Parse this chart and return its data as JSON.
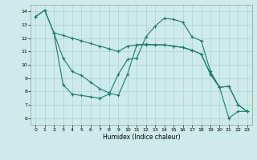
{
  "line1_x": [
    0,
    1,
    2,
    3,
    4,
    5,
    6,
    7,
    8,
    9,
    10,
    11,
    12,
    13,
    14,
    15,
    16,
    17,
    18,
    19,
    20,
    21,
    22,
    23
  ],
  "line1_y": [
    13.6,
    14.1,
    12.4,
    12.2,
    12.0,
    11.8,
    11.6,
    11.4,
    11.2,
    11.0,
    11.4,
    11.5,
    11.5,
    11.5,
    11.5,
    11.4,
    11.3,
    11.1,
    10.8,
    9.3,
    8.3,
    8.4,
    7.0,
    6.5
  ],
  "line2_x": [
    2,
    3,
    4,
    5,
    6,
    7,
    8,
    9,
    10,
    11,
    12,
    13,
    14,
    15,
    16,
    17,
    18,
    19,
    20,
    21,
    22,
    23
  ],
  "line2_y": [
    12.4,
    8.5,
    7.8,
    7.7,
    7.6,
    7.5,
    7.8,
    9.3,
    10.4,
    10.5,
    12.1,
    12.9,
    13.5,
    13.4,
    13.2,
    12.1,
    11.8,
    9.5,
    8.3,
    6.0,
    6.5,
    6.5
  ],
  "line3_x": [
    0,
    1,
    2,
    3,
    4,
    5,
    6,
    7,
    8,
    9,
    10,
    11,
    12,
    13,
    14,
    15,
    16,
    17,
    18,
    19,
    20,
    21,
    22,
    23
  ],
  "line3_y": [
    13.6,
    14.1,
    12.4,
    10.5,
    9.5,
    9.2,
    8.7,
    8.2,
    7.9,
    7.7,
    9.3,
    11.5,
    11.55,
    11.5,
    11.5,
    11.4,
    11.3,
    11.1,
    10.8,
    9.3,
    8.3,
    8.4,
    7.0,
    6.5
  ],
  "bg_color": "#ceeaea",
  "line_color": "#1a7a6e",
  "grid_color": "#aed4d0",
  "xlabel": "Humidex (Indice chaleur)",
  "ylim": [
    5.5,
    14.5
  ],
  "xlim": [
    -0.5,
    23.5
  ],
  "yticks": [
    6,
    7,
    8,
    9,
    10,
    11,
    12,
    13,
    14
  ],
  "xticks": [
    0,
    1,
    2,
    3,
    4,
    5,
    6,
    7,
    8,
    9,
    10,
    11,
    12,
    13,
    14,
    15,
    16,
    17,
    18,
    19,
    20,
    21,
    22,
    23
  ]
}
